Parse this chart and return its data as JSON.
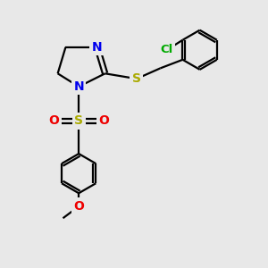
{
  "background_color": "#e8e8e8",
  "bond_color": "#000000",
  "N_color": "#0000ee",
  "S_color": "#aaaa00",
  "O_color": "#ee0000",
  "Cl_color": "#00aa00",
  "line_width": 1.6,
  "figsize": [
    3.0,
    3.0
  ],
  "dpi": 100,
  "xlim": [
    0,
    10
  ],
  "ylim": [
    0,
    10
  ]
}
